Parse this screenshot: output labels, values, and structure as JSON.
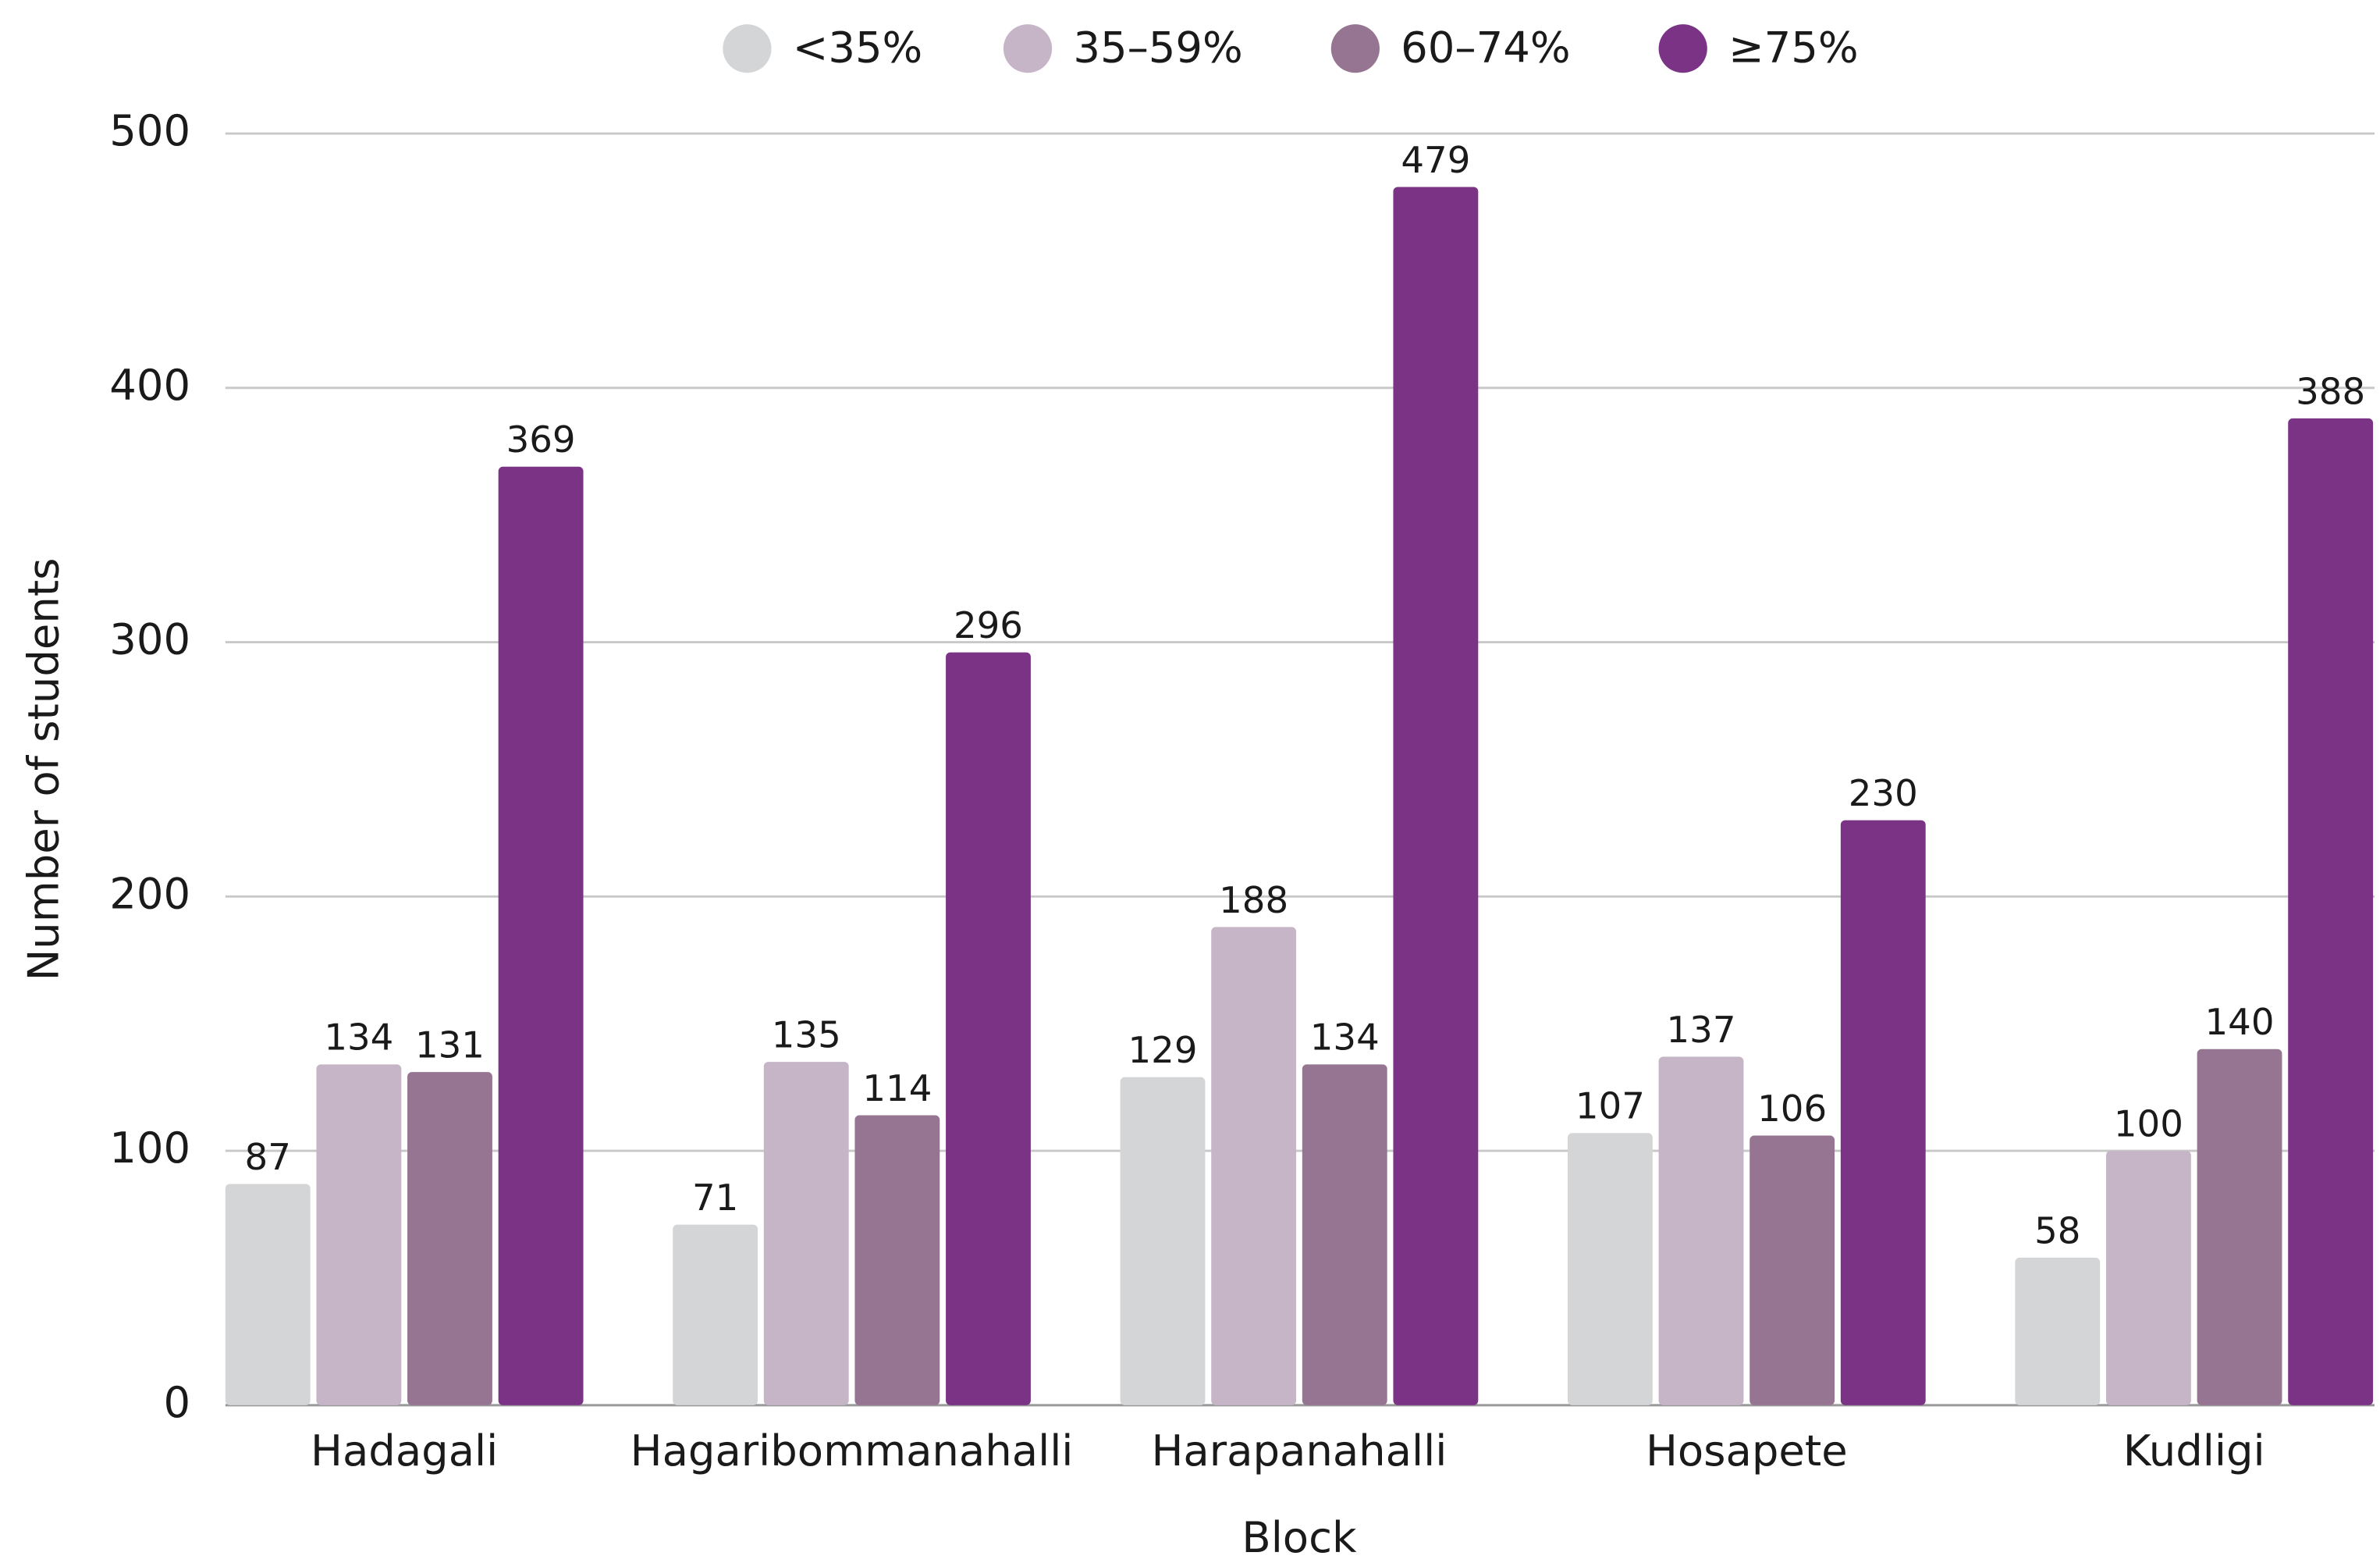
{
  "chart_data": {
    "type": "bar",
    "x_label": "Block",
    "y_label": "Number of students",
    "categories": [
      "Hadagali",
      "Hagaribommanahalli",
      "Harapanahalli",
      "Hosapete",
      "Kudligi"
    ],
    "series": [
      {
        "name": "<35%",
        "color": "#d4d5d7",
        "values": [
          87,
          71,
          129,
          107,
          58
        ]
      },
      {
        "name": "35–59%",
        "color": "#c5b5c7",
        "values": [
          134,
          135,
          188,
          137,
          100
        ]
      },
      {
        "name": "60–74%",
        "color": "#967592",
        "values": [
          131,
          114,
          134,
          106,
          140
        ]
      },
      {
        "name": "≥75%",
        "color": "#7b3386",
        "values": [
          369,
          296,
          479,
          230,
          388
        ]
      }
    ],
    "ylim": [
      0,
      500
    ],
    "yticks": [
      0,
      100,
      200,
      300,
      400,
      500
    ],
    "grid": true,
    "legend": "top"
  }
}
